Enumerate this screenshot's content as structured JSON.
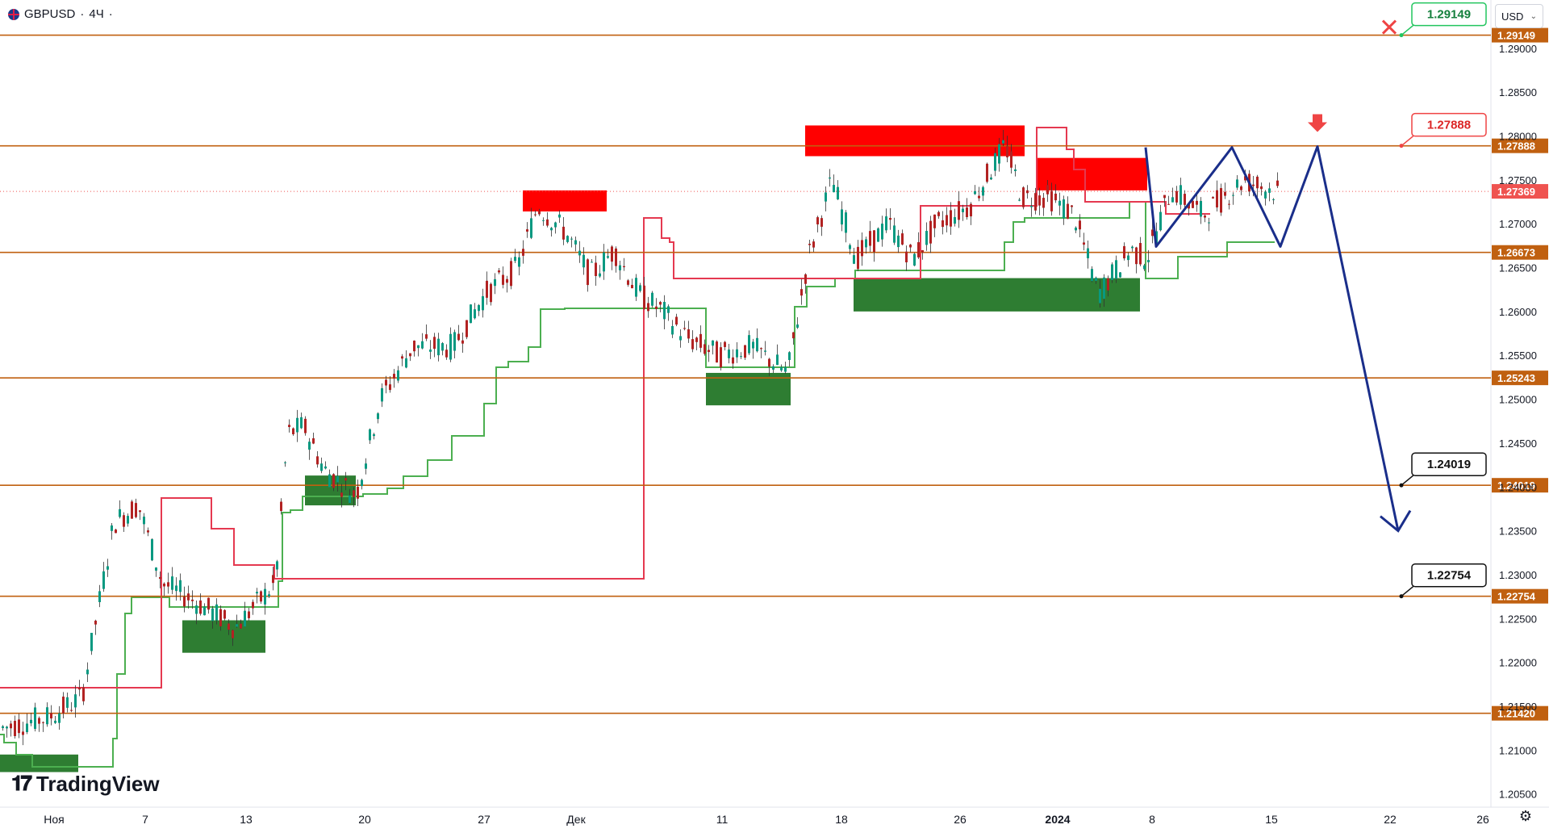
{
  "header": {
    "ticker": "GBPUSD",
    "separator": "·",
    "interval": "4Ч",
    "dot": "·"
  },
  "currency_select": {
    "value": "USD"
  },
  "logo": {
    "text": "TradingView"
  },
  "colors": {
    "support": "#2e7d32",
    "resistance": "#ff0000",
    "level_line": "#c06010",
    "up_candle": "#089981",
    "down_candle": "#b22222",
    "forecast": "#1a2e8a",
    "target_green": "#22c55e",
    "target_red": "#ef4444",
    "target_black": "#111111"
  },
  "chart_data": {
    "type": "candlestick",
    "symbol": "GBPUSD",
    "interval": "4Ч",
    "y_range": [
      1.2035,
      1.2955
    ],
    "price_scale_ticks": [
      "1.29000",
      "1.28500",
      "1.28000",
      "1.27500",
      "1.27000",
      "1.26500",
      "1.26000",
      "1.25500",
      "1.25000",
      "1.24500",
      "1.24000",
      "1.23500",
      "1.23000",
      "1.22500",
      "1.22000",
      "1.21500",
      "1.21000",
      "1.20500"
    ],
    "x_ticks": [
      {
        "label": "Ноя",
        "bold": false
      },
      {
        "label": "7",
        "bold": false
      },
      {
        "label": "13",
        "bold": false
      },
      {
        "label": "20",
        "bold": false
      },
      {
        "label": "27",
        "bold": false
      },
      {
        "label": "Дек",
        "bold": false
      },
      {
        "label": "11",
        "bold": false
      },
      {
        "label": "18",
        "bold": false
      },
      {
        "label": "26",
        "bold": false
      },
      {
        "label": "2024",
        "bold": true
      },
      {
        "label": "8",
        "bold": false
      },
      {
        "label": "15",
        "bold": false
      },
      {
        "label": "22",
        "bold": false
      },
      {
        "label": "26",
        "bold": false
      }
    ],
    "levels": [
      {
        "price": 1.29149,
        "label": "1.29149"
      },
      {
        "price": 1.27888,
        "label": "1.27888"
      },
      {
        "price": 1.26673,
        "label": "1.26673"
      },
      {
        "price": 1.25243,
        "label": "1.25243"
      },
      {
        "price": 1.24019,
        "label": "1.24019"
      },
      {
        "price": 1.22754,
        "label": "1.22754"
      },
      {
        "price": 1.2142,
        "label": "1.21420"
      }
    ],
    "current_price": {
      "price": 1.27369,
      "label": "1.27369"
    },
    "targets": [
      {
        "label": "1.29149",
        "style": "green",
        "price": 1.29149
      },
      {
        "label": "1.27888",
        "style": "red",
        "price": 1.27888
      },
      {
        "label": "1.24019",
        "style": "black",
        "price": 1.24019
      },
      {
        "label": "1.22754",
        "style": "black",
        "price": 1.22754
      }
    ],
    "resistance_zones": [
      {
        "top": 1.2812,
        "bottom": 1.2777
      },
      {
        "top": 1.2738,
        "bottom": 1.2714
      },
      {
        "top": 1.2775,
        "bottom": 1.2738
      }
    ],
    "support_zones": [
      {
        "top": 1.253,
        "bottom": 1.2493
      },
      {
        "top": 1.2638,
        "bottom": 1.26
      },
      {
        "top": 1.2413,
        "bottom": 1.2379
      },
      {
        "top": 1.2248,
        "bottom": 1.2211
      },
      {
        "top": 1.2095,
        "bottom": 1.2075
      }
    ],
    "forecast_path": [
      1.2787,
      1.2674,
      1.2787,
      1.2674,
      1.2788,
      1.235
    ]
  }
}
